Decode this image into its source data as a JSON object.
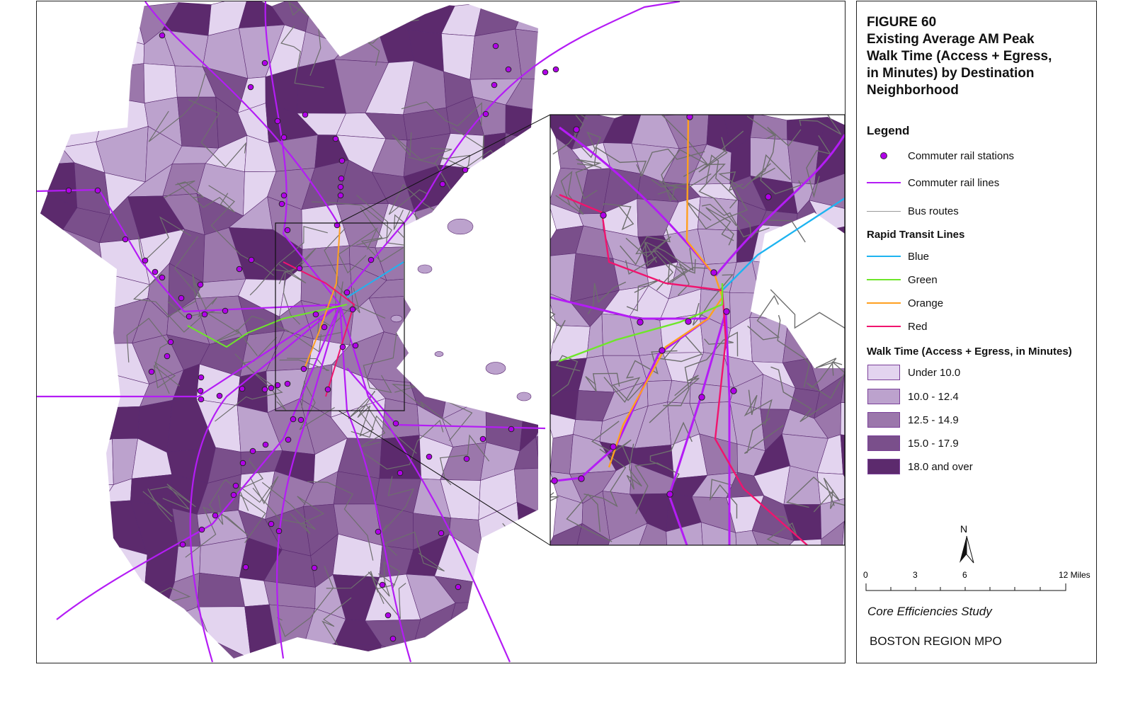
{
  "title_lines": [
    "FIGURE 60",
    "Existing Average AM Peak",
    "Walk Time (Access + Egress,",
    "in Minutes) by Destination",
    "Neighborhood"
  ],
  "legend": {
    "heading": "Legend",
    "symbols": [
      {
        "label": "Commuter rail stations",
        "icon": "station-dot-icon",
        "color": "#b000e8"
      },
      {
        "label": "Commuter rail lines",
        "icon": "line-icon",
        "color": "#b41cf5"
      },
      {
        "label": "Bus routes",
        "icon": "line-icon",
        "color": "#9a9a9a"
      }
    ],
    "rapid_transit_heading": "Rapid Transit Lines",
    "rapid_transit": [
      {
        "label": "Blue",
        "color": "#1eb4f0"
      },
      {
        "label": "Green",
        "color": "#6ee62a"
      },
      {
        "label": "Orange",
        "color": "#ffa020"
      },
      {
        "label": "Red",
        "color": "#f0146e"
      }
    ],
    "walk_time_heading": "Walk Time (Access + Egress, in Minutes)",
    "classes": [
      {
        "label": "Under 10.0",
        "color": "#e3d4ef"
      },
      {
        "label": "10.0 - 12.4",
        "color": "#bca2cd"
      },
      {
        "label": "12.5 - 14.9",
        "color": "#9b77ab"
      },
      {
        "label": "15.0 - 17.9",
        "color": "#7a4f8b"
      },
      {
        "label": "18.0 and over",
        "color": "#5c2a6d"
      }
    ]
  },
  "north_arrow": {
    "label": "N"
  },
  "scale_bar": {
    "ticks": [
      "0",
      "3",
      "6",
      "12 Miles"
    ]
  },
  "credits": {
    "study": "Core Efficiencies Study",
    "org": "BOSTON REGION MPO"
  }
}
